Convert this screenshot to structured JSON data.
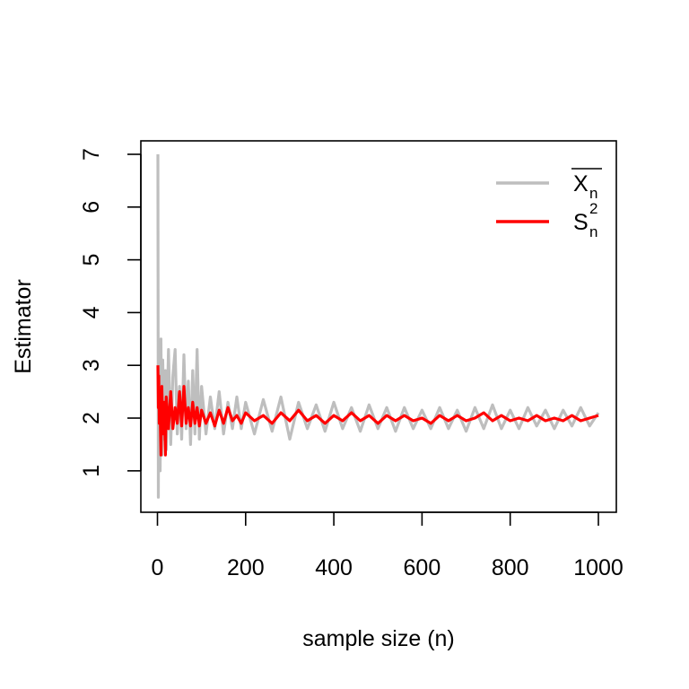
{
  "chart_data": {
    "type": "line",
    "title": "",
    "xlabel": "sample size (n)",
    "ylabel": "Estimator",
    "xlim": [
      1,
      1000
    ],
    "ylim": [
      0.47,
      7.0
    ],
    "x_ticks": [
      0,
      200,
      400,
      600,
      800,
      1000
    ],
    "y_ticks": [
      1,
      2,
      3,
      4,
      5,
      6,
      7
    ],
    "grid": false,
    "legend_position": "top-right",
    "legend": [
      {
        "series": "mean",
        "base": "X",
        "sub": "n",
        "sup": "",
        "overline": true
      },
      {
        "series": "variance",
        "base": "S",
        "sub": "n",
        "sup": "2",
        "overline": false
      }
    ],
    "series": [
      {
        "key": "mean",
        "color": "#bebebe",
        "x": [
          1,
          2,
          3,
          4,
          5,
          6,
          8,
          10,
          12,
          15,
          18,
          20,
          25,
          30,
          35,
          40,
          45,
          50,
          55,
          60,
          65,
          70,
          75,
          80,
          85,
          90,
          95,
          100,
          110,
          120,
          130,
          140,
          150,
          160,
          170,
          180,
          190,
          200,
          220,
          240,
          260,
          280,
          300,
          320,
          340,
          360,
          380,
          400,
          420,
          440,
          460,
          480,
          500,
          520,
          540,
          560,
          580,
          600,
          620,
          640,
          660,
          680,
          700,
          720,
          740,
          760,
          780,
          800,
          820,
          840,
          860,
          880,
          900,
          920,
          940,
          960,
          980,
          1000
        ],
        "y": [
          7.0,
          0.5,
          3.2,
          1.2,
          2.6,
          1.0,
          3.5,
          1.3,
          3.1,
          1.6,
          2.9,
          1.4,
          3.3,
          1.5,
          2.8,
          3.3,
          1.7,
          2.6,
          1.6,
          3.2,
          1.8,
          2.7,
          1.5,
          2.9,
          1.7,
          3.3,
          1.6,
          2.6,
          1.7,
          2.4,
          1.8,
          2.5,
          1.7,
          2.3,
          1.8,
          2.4,
          1.8,
          2.3,
          1.7,
          2.35,
          1.75,
          2.4,
          1.6,
          2.3,
          1.8,
          2.25,
          1.75,
          2.3,
          1.8,
          2.2,
          1.75,
          2.25,
          1.8,
          2.2,
          1.75,
          2.2,
          1.8,
          2.15,
          1.8,
          2.2,
          1.8,
          2.15,
          1.75,
          2.2,
          1.8,
          2.25,
          1.8,
          2.15,
          1.8,
          2.2,
          1.85,
          2.15,
          1.8,
          2.15,
          1.85,
          2.2,
          1.85,
          2.1
        ]
      },
      {
        "key": "variance",
        "color": "#ff0000",
        "x": [
          1,
          2,
          3,
          4,
          5,
          6,
          8,
          10,
          12,
          15,
          18,
          20,
          25,
          30,
          35,
          40,
          45,
          50,
          55,
          60,
          65,
          70,
          75,
          80,
          85,
          90,
          95,
          100,
          110,
          120,
          130,
          140,
          150,
          160,
          170,
          180,
          190,
          200,
          220,
          240,
          260,
          280,
          300,
          320,
          340,
          360,
          380,
          400,
          420,
          440,
          460,
          480,
          500,
          520,
          540,
          560,
          580,
          600,
          620,
          640,
          660,
          680,
          700,
          720,
          740,
          760,
          780,
          800,
          820,
          840,
          860,
          880,
          900,
          920,
          940,
          960,
          980,
          1000
        ],
        "y": [
          3.0,
          2.2,
          2.8,
          1.9,
          2.5,
          2.1,
          1.3,
          2.6,
          1.7,
          2.3,
          1.3,
          2.4,
          1.8,
          2.5,
          1.8,
          2.2,
          1.9,
          2.5,
          1.85,
          2.6,
          1.9,
          2.2,
          1.85,
          2.3,
          1.9,
          2.2,
          1.85,
          2.15,
          1.9,
          2.1,
          1.85,
          2.15,
          1.9,
          2.2,
          1.95,
          2.05,
          1.9,
          2.1,
          1.95,
          2.05,
          1.9,
          2.1,
          1.95,
          2.15,
          1.95,
          2.05,
          1.9,
          2.05,
          1.95,
          2.1,
          1.95,
          2.05,
          1.9,
          2.05,
          1.95,
          2.05,
          1.95,
          2.0,
          1.9,
          2.05,
          1.95,
          2.05,
          1.95,
          2.0,
          2.1,
          1.95,
          2.05,
          1.95,
          2.0,
          1.95,
          2.05,
          1.95,
          2.0,
          1.95,
          2.05,
          1.95,
          2.0,
          2.05
        ]
      }
    ]
  }
}
